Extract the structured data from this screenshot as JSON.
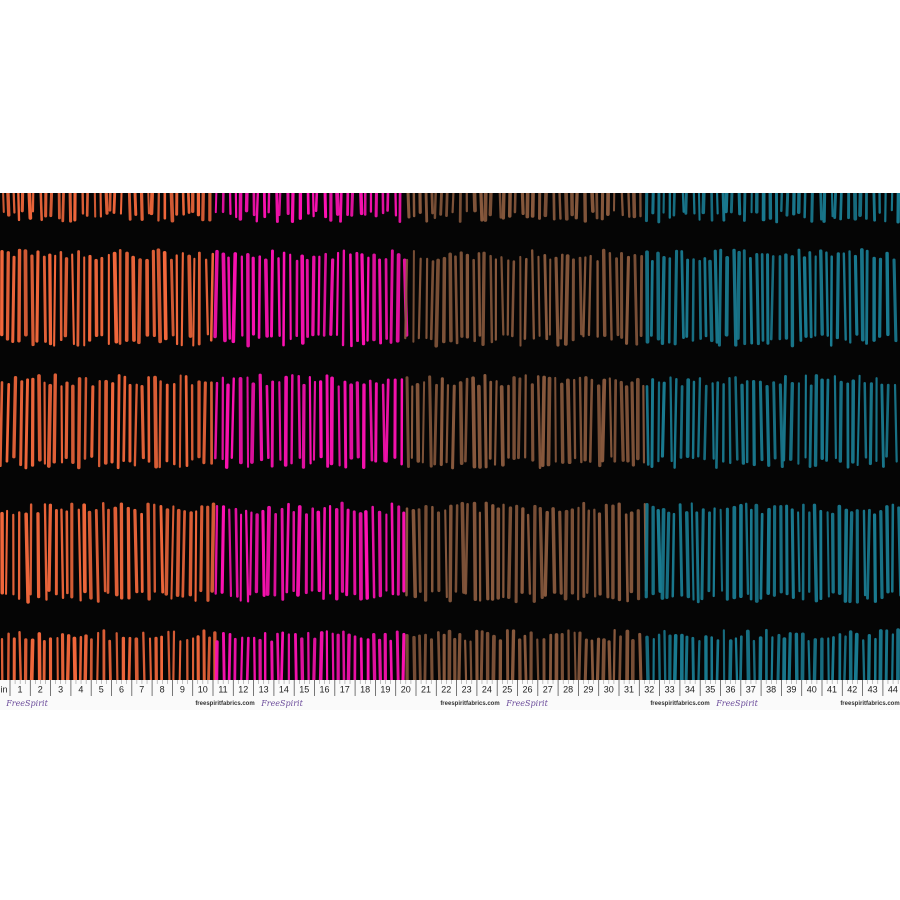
{
  "ruler": {
    "unit": "in",
    "numbers": [
      1,
      2,
      3,
      4,
      5,
      6,
      7,
      8,
      9,
      10,
      11,
      12,
      13,
      14,
      15,
      16,
      17,
      18,
      19,
      20,
      21,
      22,
      23,
      24,
      25,
      26,
      27,
      28,
      29,
      30,
      31,
      32,
      33,
      34,
      35,
      36,
      37,
      38,
      39,
      40,
      41,
      42,
      43,
      44
    ]
  },
  "selvage": {
    "websites": [
      "freespiritfabrics.com",
      "freespiritfabrics.com",
      "freespiritfabrics.com",
      "freespiritfabrics.com"
    ],
    "logos": [
      "FreeSpirit",
      "FreeSpirit",
      "FreeSpirit",
      "FreeSpirit"
    ]
  }
}
